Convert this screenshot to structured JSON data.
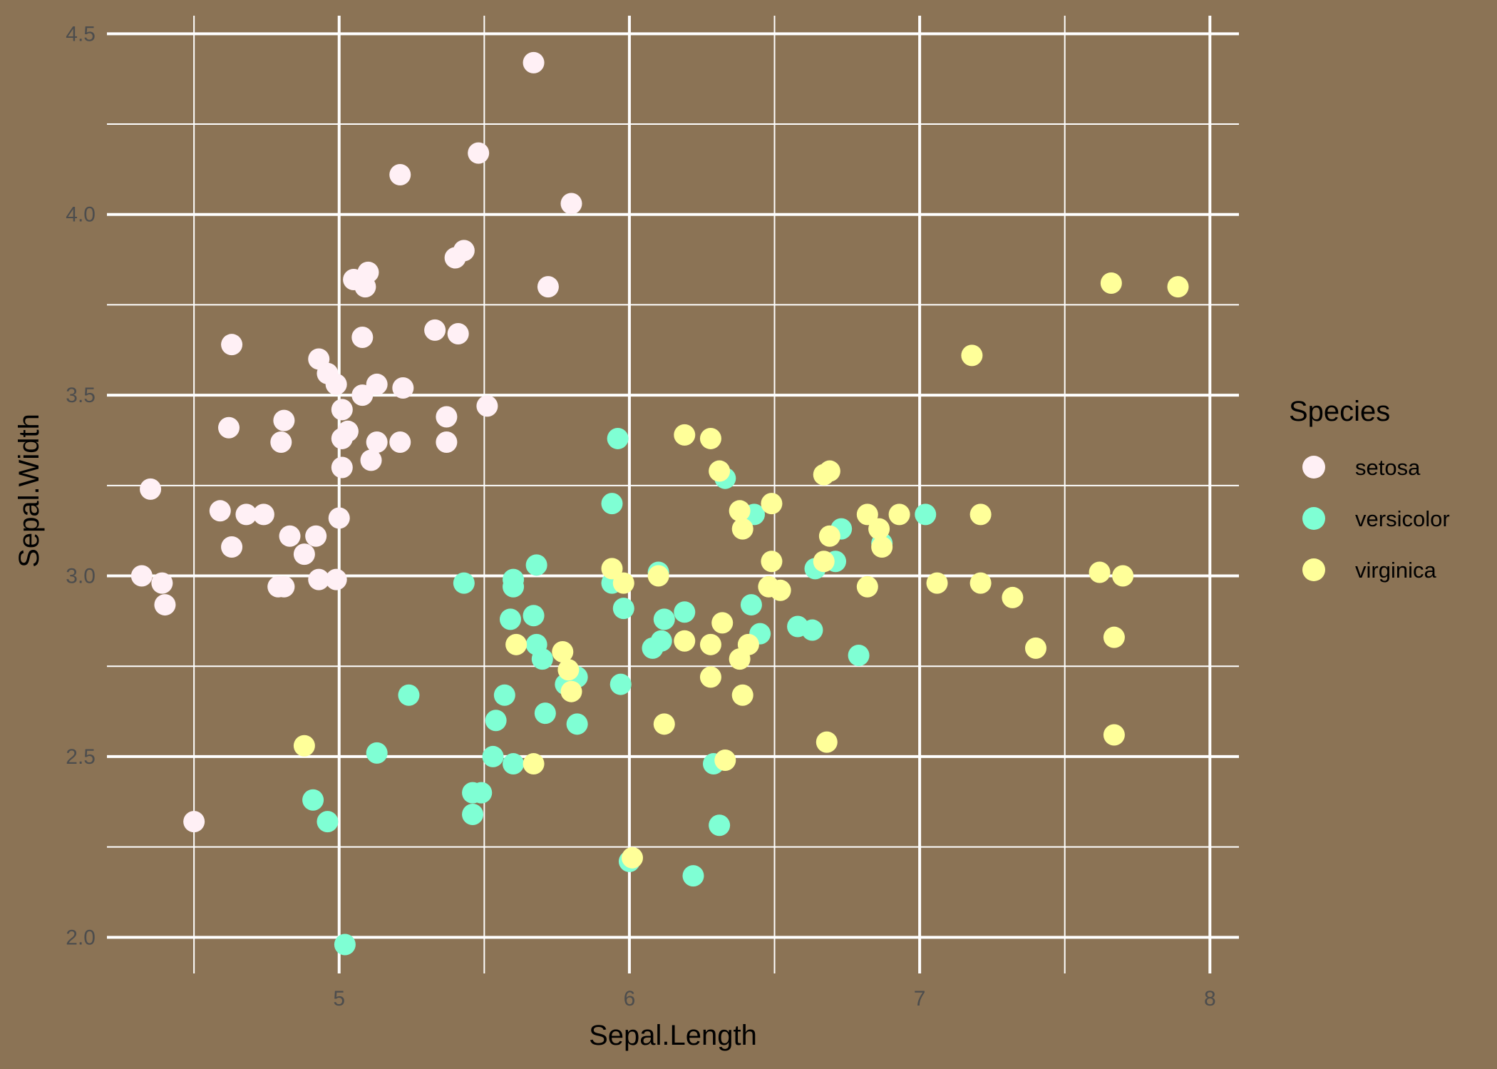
{
  "chart_data": {
    "type": "scatter",
    "xlabel": "Sepal.Length",
    "ylabel": "Sepal.Width",
    "xlim": [
      4.2,
      8.1
    ],
    "ylim": [
      1.9,
      4.55
    ],
    "x_ticks": [
      5,
      6,
      7,
      8
    ],
    "x_tick_labels": [
      "5",
      "6",
      "7",
      "8"
    ],
    "y_ticks": [
      2.0,
      2.5,
      3.0,
      3.5,
      4.0,
      4.5
    ],
    "y_tick_labels": [
      "2.0",
      "2.5",
      "3.0",
      "3.5",
      "4.0",
      "4.5"
    ],
    "grid": true,
    "background_color": "#8B7355",
    "grid_color": "#FFFFFF",
    "legend": {
      "title": "Species",
      "placement": "right"
    },
    "series": [
      {
        "name": "setosa",
        "color": "#FFF0F5",
        "points": [
          [
            5.67,
            4.42
          ],
          [
            5.48,
            4.17
          ],
          [
            5.21,
            4.11
          ],
          [
            5.8,
            4.03
          ],
          [
            5.43,
            3.9
          ],
          [
            5.4,
            3.88
          ],
          [
            5.1,
            3.84
          ],
          [
            5.05,
            3.82
          ],
          [
            5.09,
            3.8
          ],
          [
            5.72,
            3.8
          ],
          [
            5.08,
            3.66
          ],
          [
            5.33,
            3.68
          ],
          [
            5.41,
            3.67
          ],
          [
            4.63,
            3.64
          ],
          [
            4.93,
            3.6
          ],
          [
            4.96,
            3.56
          ],
          [
            4.99,
            3.53
          ],
          [
            5.13,
            3.53
          ],
          [
            5.22,
            3.52
          ],
          [
            5.08,
            3.5
          ],
          [
            5.51,
            3.47
          ],
          [
            5.01,
            3.46
          ],
          [
            4.81,
            3.43
          ],
          [
            5.37,
            3.44
          ],
          [
            4.62,
            3.41
          ],
          [
            5.03,
            3.4
          ],
          [
            5.01,
            3.38
          ],
          [
            4.8,
            3.37
          ],
          [
            5.13,
            3.37
          ],
          [
            5.21,
            3.37
          ],
          [
            5.37,
            3.37
          ],
          [
            5.11,
            3.32
          ],
          [
            5.01,
            3.3
          ],
          [
            4.35,
            3.24
          ],
          [
            4.59,
            3.18
          ],
          [
            4.68,
            3.17
          ],
          [
            4.74,
            3.17
          ],
          [
            5.0,
            3.16
          ],
          [
            4.83,
            3.11
          ],
          [
            4.92,
            3.11
          ],
          [
            4.63,
            3.08
          ],
          [
            4.88,
            3.06
          ],
          [
            4.32,
            3.0
          ],
          [
            4.39,
            2.98
          ],
          [
            4.93,
            2.99
          ],
          [
            4.99,
            2.99
          ],
          [
            4.79,
            2.97
          ],
          [
            4.81,
            2.97
          ],
          [
            4.4,
            2.92
          ],
          [
            4.5,
            2.32
          ]
        ]
      },
      {
        "name": "versicolor",
        "color": "#7FFFD4",
        "points": [
          [
            5.96,
            3.38
          ],
          [
            6.33,
            3.27
          ],
          [
            5.94,
            3.2
          ],
          [
            6.43,
            3.17
          ],
          [
            7.02,
            3.17
          ],
          [
            6.73,
            3.13
          ],
          [
            6.87,
            3.09
          ],
          [
            6.71,
            3.04
          ],
          [
            6.64,
            3.02
          ],
          [
            5.68,
            3.03
          ],
          [
            6.1,
            3.01
          ],
          [
            5.6,
            2.99
          ],
          [
            5.43,
            2.98
          ],
          [
            5.94,
            2.98
          ],
          [
            5.6,
            2.97
          ],
          [
            5.98,
            2.91
          ],
          [
            6.42,
            2.92
          ],
          [
            6.19,
            2.9
          ],
          [
            5.67,
            2.89
          ],
          [
            5.59,
            2.88
          ],
          [
            6.12,
            2.88
          ],
          [
            6.58,
            2.86
          ],
          [
            6.45,
            2.84
          ],
          [
            6.11,
            2.82
          ],
          [
            6.08,
            2.8
          ],
          [
            5.68,
            2.81
          ],
          [
            5.7,
            2.77
          ],
          [
            6.79,
            2.78
          ],
          [
            5.82,
            2.72
          ],
          [
            5.78,
            2.7
          ],
          [
            5.97,
            2.7
          ],
          [
            5.24,
            2.67
          ],
          [
            5.57,
            2.67
          ],
          [
            5.71,
            2.62
          ],
          [
            5.54,
            2.6
          ],
          [
            5.82,
            2.59
          ],
          [
            5.13,
            2.51
          ],
          [
            5.53,
            2.5
          ],
          [
            5.6,
            2.48
          ],
          [
            6.29,
            2.48
          ],
          [
            5.49,
            2.4
          ],
          [
            5.46,
            2.4
          ],
          [
            5.46,
            2.34
          ],
          [
            4.91,
            2.38
          ],
          [
            4.96,
            2.32
          ],
          [
            6.31,
            2.31
          ],
          [
            6.0,
            2.21
          ],
          [
            6.22,
            2.17
          ],
          [
            5.02,
            1.98
          ],
          [
            6.63,
            2.85
          ]
        ]
      },
      {
        "name": "virginica",
        "color": "#FFFF99",
        "points": [
          [
            7.66,
            3.81
          ],
          [
            7.89,
            3.8
          ],
          [
            7.18,
            3.61
          ],
          [
            6.19,
            3.39
          ],
          [
            6.28,
            3.38
          ],
          [
            6.31,
            3.29
          ],
          [
            6.69,
            3.29
          ],
          [
            6.67,
            3.28
          ],
          [
            6.49,
            3.2
          ],
          [
            6.38,
            3.18
          ],
          [
            6.82,
            3.17
          ],
          [
            6.93,
            3.17
          ],
          [
            7.21,
            3.17
          ],
          [
            6.39,
            3.13
          ],
          [
            6.86,
            3.13
          ],
          [
            6.69,
            3.11
          ],
          [
            6.87,
            3.08
          ],
          [
            6.67,
            3.04
          ],
          [
            6.49,
            3.04
          ],
          [
            5.94,
            3.02
          ],
          [
            7.62,
            3.01
          ],
          [
            7.7,
            3.0
          ],
          [
            6.1,
            3.0
          ],
          [
            5.98,
            2.98
          ],
          [
            7.06,
            2.98
          ],
          [
            7.21,
            2.98
          ],
          [
            6.82,
            2.97
          ],
          [
            6.48,
            2.97
          ],
          [
            6.52,
            2.96
          ],
          [
            7.32,
            2.94
          ],
          [
            6.32,
            2.87
          ],
          [
            7.67,
            2.83
          ],
          [
            6.19,
            2.82
          ],
          [
            6.28,
            2.81
          ],
          [
            5.61,
            2.81
          ],
          [
            6.41,
            2.81
          ],
          [
            5.77,
            2.79
          ],
          [
            7.4,
            2.8
          ],
          [
            6.38,
            2.77
          ],
          [
            5.79,
            2.74
          ],
          [
            6.28,
            2.72
          ],
          [
            5.8,
            2.68
          ],
          [
            6.39,
            2.67
          ],
          [
            6.12,
            2.59
          ],
          [
            7.67,
            2.56
          ],
          [
            6.68,
            2.54
          ],
          [
            4.88,
            2.53
          ],
          [
            6.33,
            2.49
          ],
          [
            5.67,
            2.48
          ],
          [
            6.01,
            2.22
          ]
        ]
      }
    ]
  }
}
